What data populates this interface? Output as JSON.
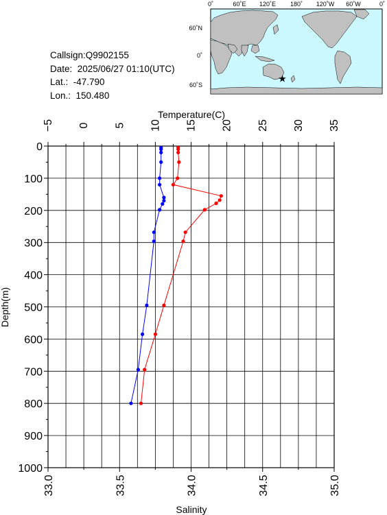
{
  "meta": {
    "callsign": "Callsign:Q9902155",
    "date": "Date:  2025/06/27 01:10(UTC)",
    "lat": "Lat.:  -47.790",
    "lon": "Lon.:  150.480"
  },
  "map": {
    "top_labels": [
      "0˚",
      "60˚E",
      "120˚E",
      "180˚",
      "120˚W",
      "60˚W",
      "0˚"
    ],
    "side_labels": [
      "60˚N",
      "0˚",
      "60˚S"
    ],
    "ocean_color": "#ccf8ff",
    "land_color": "#c0c0c0",
    "marker": {
      "lon": 150.48,
      "lat": -47.79,
      "symbol": "star",
      "color": "#ff0000"
    }
  },
  "chart_data": {
    "type": "line",
    "ylabel": "Depth(m)",
    "y_range": [
      0,
      1000
    ],
    "y_inverted": true,
    "y_ticks": [
      "0",
      "100",
      "200",
      "300",
      "400",
      "500",
      "600",
      "700",
      "800",
      "900",
      "1000"
    ],
    "top_axis": {
      "label": "Temperature(C)",
      "range": [
        -5,
        35
      ],
      "ticks": [
        "-5",
        "0",
        "5",
        "10",
        "15",
        "20",
        "25",
        "30",
        "35"
      ]
    },
    "bottom_axis": {
      "label": "Salinity",
      "range": [
        33.0,
        35.0
      ],
      "ticks": [
        "33.0",
        "33.5",
        "34.0",
        "34.5",
        "35.0"
      ]
    },
    "grid": true,
    "series": [
      {
        "axis": "temperature",
        "color": "#ff0000",
        "points": [
          {
            "value": 13.2,
            "depth": 5
          },
          {
            "value": 13.2,
            "depth": 10
          },
          {
            "value": 13.2,
            "depth": 20
          },
          {
            "value": 13.3,
            "depth": 50
          },
          {
            "value": 13.1,
            "depth": 100
          },
          {
            "value": 12.5,
            "depth": 120
          },
          {
            "value": 19.2,
            "depth": 155
          },
          {
            "value": 19.0,
            "depth": 168
          },
          {
            "value": 18.5,
            "depth": 178
          },
          {
            "value": 16.9,
            "depth": 198
          },
          {
            "value": 14.2,
            "depth": 268
          },
          {
            "value": 13.9,
            "depth": 296
          },
          {
            "value": 11.2,
            "depth": 495
          },
          {
            "value": 10.0,
            "depth": 585
          },
          {
            "value": 8.5,
            "depth": 695
          },
          {
            "value": 8.0,
            "depth": 800
          }
        ]
      },
      {
        "axis": "salinity",
        "color": "#0000ff",
        "points": [
          {
            "value": 33.79,
            "depth": 5
          },
          {
            "value": 33.79,
            "depth": 10
          },
          {
            "value": 33.79,
            "depth": 20
          },
          {
            "value": 33.79,
            "depth": 50
          },
          {
            "value": 33.78,
            "depth": 100
          },
          {
            "value": 33.78,
            "depth": 120
          },
          {
            "value": 33.81,
            "depth": 160
          },
          {
            "value": 33.81,
            "depth": 170
          },
          {
            "value": 33.8,
            "depth": 180
          },
          {
            "value": 33.78,
            "depth": 198
          },
          {
            "value": 33.74,
            "depth": 268
          },
          {
            "value": 33.74,
            "depth": 296
          },
          {
            "value": 33.69,
            "depth": 495
          },
          {
            "value": 33.66,
            "depth": 585
          },
          {
            "value": 33.63,
            "depth": 695
          },
          {
            "value": 33.58,
            "depth": 800
          }
        ]
      }
    ]
  }
}
